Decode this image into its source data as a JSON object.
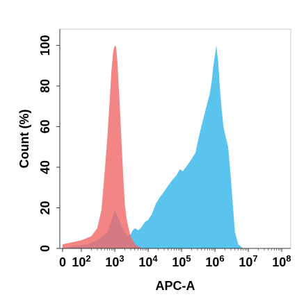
{
  "chart_data": {
    "type": "area",
    "title": "",
    "xlabel": "APC-A",
    "ylabel": "Count (%)",
    "x_scale": "log (biexponential, 0 shown at left)",
    "x_ticks": [
      {
        "value": 0,
        "label": "0",
        "base": "",
        "exp": ""
      },
      {
        "value": 100,
        "label": "10^2",
        "base": "10",
        "exp": "2"
      },
      {
        "value": 1000,
        "label": "10^3",
        "base": "10",
        "exp": "3"
      },
      {
        "value": 10000,
        "label": "10^4",
        "base": "10",
        "exp": "4"
      },
      {
        "value": 100000,
        "label": "10^5",
        "base": "10",
        "exp": "5"
      },
      {
        "value": 1000000,
        "label": "10^6",
        "base": "10",
        "exp": "6"
      },
      {
        "value": 10000000,
        "label": "10^7",
        "base": "10",
        "exp": "7"
      },
      {
        "value": 100000000,
        "label": "10^8",
        "base": "10",
        "exp": "8"
      }
    ],
    "ylim": [
      0,
      108
    ],
    "y_ticks": [
      "0",
      "20",
      "40",
      "60",
      "80",
      "100"
    ],
    "grid": false,
    "legend": "none",
    "series": [
      {
        "color": "#5bc4ee",
        "x": [
          0,
          50,
          150,
          300,
          600,
          800,
          1000,
          1200,
          1500,
          2000,
          2500,
          3000,
          3500,
          4000,
          5000,
          6000,
          8000,
          10000,
          13000,
          17000,
          22000,
          30000,
          40000,
          55000,
          70000,
          90000,
          110000,
          150000,
          200000,
          260000,
          330000,
          420000,
          520000,
          600000,
          700000,
          800000,
          900000,
          1000000,
          1100000,
          1250000,
          1400000,
          1600000,
          1800000,
          2100000,
          2500000,
          3000000,
          3500000,
          4000000,
          5000000,
          7000000,
          100000000
        ],
        "y": [
          0,
          1,
          2,
          4,
          8,
          14,
          19,
          16,
          12,
          8,
          6,
          7,
          9,
          10,
          9,
          10,
          13,
          14,
          17,
          22,
          25,
          28,
          31,
          34,
          36,
          39,
          38,
          41,
          44,
          47,
          55,
          62,
          68,
          72,
          76,
          82,
          90,
          95,
          100,
          92,
          80,
          68,
          60,
          55,
          50,
          35,
          20,
          8,
          2,
          0,
          0
        ]
      },
      {
        "color": "#f06a6a",
        "x": [
          0,
          50,
          100,
          200,
          300,
          400,
          500,
          600,
          700,
          800,
          900,
          1000,
          1100,
          1200,
          1400,
          1600,
          1800,
          2000,
          2300,
          2600,
          3000,
          3500,
          4000,
          5000,
          7000,
          100000000
        ],
        "y": [
          2,
          3,
          4,
          6,
          10,
          19,
          38,
          55,
          72,
          88,
          97,
          100,
          99,
          92,
          72,
          52,
          35,
          22,
          14,
          10,
          6,
          4,
          2,
          1,
          0,
          0
        ]
      }
    ]
  }
}
